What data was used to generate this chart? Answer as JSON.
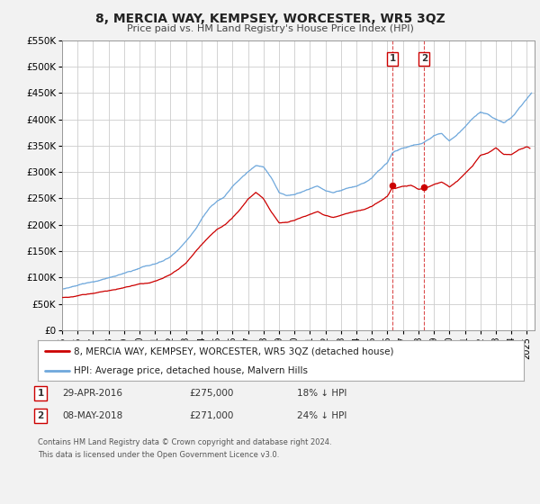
{
  "title": "8, MERCIA WAY, KEMPSEY, WORCESTER, WR5 3QZ",
  "subtitle": "Price paid vs. HM Land Registry's House Price Index (HPI)",
  "hpi_color": "#6fa8dc",
  "price_color": "#cc0000",
  "plot_bg_color": "#ffffff",
  "fig_bg_color": "#f2f2f2",
  "grid_color": "#cccccc",
  "ylim": [
    0,
    550000
  ],
  "yticks": [
    0,
    50000,
    100000,
    150000,
    200000,
    250000,
    300000,
    350000,
    400000,
    450000,
    500000,
    550000
  ],
  "ytick_labels": [
    "£0",
    "£50K",
    "£100K",
    "£150K",
    "£200K",
    "£250K",
    "£300K",
    "£350K",
    "£400K",
    "£450K",
    "£500K",
    "£550K"
  ],
  "xlim_start": 1995.0,
  "xlim_end": 2025.5,
  "xticks": [
    1995,
    1996,
    1997,
    1998,
    1999,
    2000,
    2001,
    2002,
    2003,
    2004,
    2005,
    2006,
    2007,
    2008,
    2009,
    2010,
    2011,
    2012,
    2013,
    2014,
    2015,
    2016,
    2017,
    2018,
    2019,
    2020,
    2021,
    2022,
    2023,
    2024,
    2025
  ],
  "event1_x": 2016.33,
  "event1_label": "1",
  "event1_date": "29-APR-2016",
  "event1_price": "£275,000",
  "event1_hpi": "18% ↓ HPI",
  "event1_y": 275000,
  "event2_x": 2018.37,
  "event2_label": "2",
  "event2_date": "08-MAY-2018",
  "event2_price": "£271,000",
  "event2_hpi": "24% ↓ HPI",
  "event2_y": 271000,
  "legend_line1": "8, MERCIA WAY, KEMPSEY, WORCESTER, WR5 3QZ (detached house)",
  "legend_line2": "HPI: Average price, detached house, Malvern Hills",
  "footer1": "Contains HM Land Registry data © Crown copyright and database right 2024.",
  "footer2": "This data is licensed under the Open Government Licence v3.0.",
  "key_years_hpi": [
    1995.0,
    1995.5,
    1996.0,
    1996.5,
    1997.0,
    1997.5,
    1998.0,
    1998.5,
    1999.0,
    1999.5,
    2000.0,
    2000.5,
    2001.0,
    2001.5,
    2002.0,
    2002.5,
    2003.0,
    2003.5,
    2004.0,
    2004.5,
    2005.0,
    2005.5,
    2006.0,
    2006.5,
    2007.0,
    2007.5,
    2008.0,
    2008.5,
    2009.0,
    2009.5,
    2010.0,
    2010.5,
    2011.0,
    2011.5,
    2012.0,
    2012.5,
    2013.0,
    2013.5,
    2014.0,
    2014.5,
    2015.0,
    2015.5,
    2016.0,
    2016.33,
    2016.5,
    2017.0,
    2017.5,
    2018.0,
    2018.37,
    2018.5,
    2019.0,
    2019.5,
    2020.0,
    2020.5,
    2021.0,
    2021.5,
    2022.0,
    2022.5,
    2023.0,
    2023.5,
    2024.0,
    2024.5,
    2025.0,
    2025.3
  ],
  "key_vals_hpi": [
    78000,
    80000,
    84000,
    87000,
    90000,
    93000,
    96000,
    100000,
    105000,
    110000,
    115000,
    118000,
    122000,
    128000,
    138000,
    152000,
    168000,
    186000,
    210000,
    230000,
    242000,
    250000,
    270000,
    285000,
    298000,
    308000,
    305000,
    285000,
    258000,
    252000,
    255000,
    262000,
    268000,
    272000,
    263000,
    260000,
    265000,
    270000,
    272000,
    278000,
    288000,
    302000,
    316000,
    335000,
    338000,
    345000,
    350000,
    352000,
    355000,
    358000,
    368000,
    372000,
    358000,
    370000,
    385000,
    400000,
    412000,
    408000,
    398000,
    392000,
    402000,
    420000,
    438000,
    450000
  ],
  "key_years_price": [
    1995.0,
    1995.5,
    1996.0,
    1996.5,
    1997.0,
    1997.5,
    1998.0,
    1998.5,
    1999.0,
    1999.5,
    2000.0,
    2000.5,
    2001.0,
    2001.5,
    2002.0,
    2002.5,
    2003.0,
    2003.5,
    2004.0,
    2004.5,
    2005.0,
    2005.5,
    2006.0,
    2006.5,
    2007.0,
    2007.5,
    2008.0,
    2008.5,
    2009.0,
    2009.5,
    2010.0,
    2010.5,
    2011.0,
    2011.5,
    2012.0,
    2012.5,
    2013.0,
    2013.5,
    2014.0,
    2014.5,
    2015.0,
    2015.5,
    2016.0,
    2016.33,
    2016.5,
    2017.0,
    2017.5,
    2018.0,
    2018.37,
    2018.5,
    2019.0,
    2019.5,
    2020.0,
    2020.5,
    2021.0,
    2021.5,
    2022.0,
    2022.5,
    2023.0,
    2023.5,
    2024.0,
    2024.5,
    2025.0,
    2025.2
  ],
  "key_vals_price": [
    62000,
    63000,
    65000,
    68000,
    70000,
    73000,
    75000,
    78000,
    82000,
    86000,
    90000,
    92000,
    95000,
    100000,
    108000,
    118000,
    130000,
    148000,
    165000,
    180000,
    192000,
    200000,
    215000,
    230000,
    250000,
    262000,
    250000,
    225000,
    205000,
    205000,
    208000,
    215000,
    220000,
    225000,
    218000,
    215000,
    220000,
    225000,
    228000,
    232000,
    238000,
    248000,
    258000,
    275000,
    272000,
    276000,
    278000,
    270000,
    271000,
    272000,
    278000,
    282000,
    272000,
    282000,
    295000,
    310000,
    330000,
    335000,
    345000,
    332000,
    332000,
    342000,
    348000,
    345000
  ]
}
